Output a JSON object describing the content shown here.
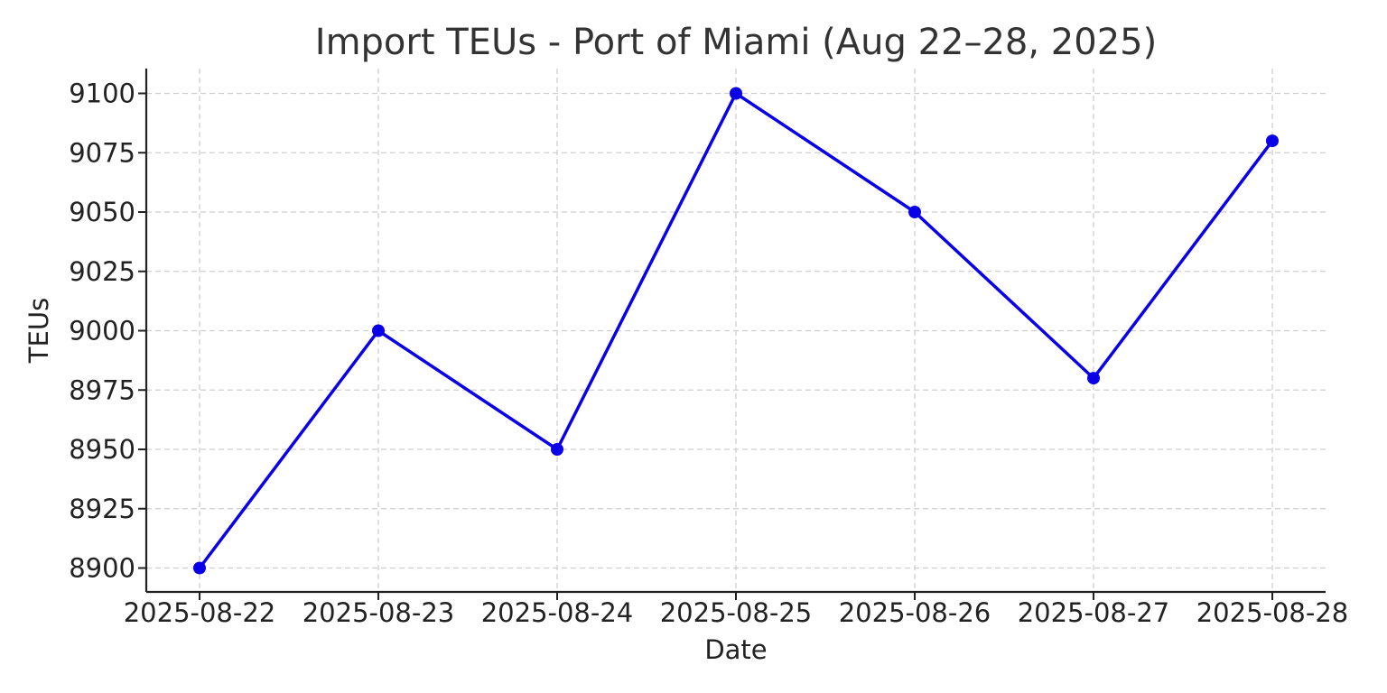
{
  "chart_data": {
    "type": "line",
    "title": "Import TEUs - Port of Miami (Aug 22–28, 2025)",
    "xlabel": "Date",
    "ylabel": "TEUs",
    "categories": [
      "2025-08-22",
      "2025-08-23",
      "2025-08-24",
      "2025-08-25",
      "2025-08-26",
      "2025-08-27",
      "2025-08-28"
    ],
    "series": [
      {
        "values": [
          8900,
          9000,
          8950,
          9100,
          9050,
          8980,
          9080
        ],
        "color": "#0a00e8",
        "marker": "circle"
      }
    ],
    "ylim": [
      8890,
      9111
    ],
    "yticks": [
      8900,
      8925,
      8950,
      8975,
      9000,
      9025,
      9050,
      9075,
      9100
    ],
    "grid": true,
    "grid_style": "dashed",
    "legend": false
  }
}
